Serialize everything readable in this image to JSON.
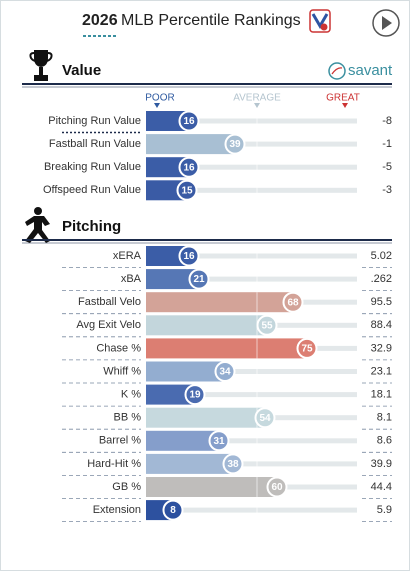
{
  "header": {
    "year": "2026",
    "title": "MLB Percentile Rankings"
  },
  "brand": "savant",
  "scale": {
    "poor": "POOR",
    "average": "AVERAGE",
    "great": "GREAT"
  },
  "sections": [
    {
      "title": "Value",
      "rows": [
        {
          "label": "Pitching Run Value",
          "percentile": 16,
          "value": "-8",
          "color": "#3b5da7"
        },
        {
          "label": "Fastball Run Value",
          "percentile": 39,
          "value": "-1",
          "color": "#a8bfd3"
        },
        {
          "label": "Breaking Run Value",
          "percentile": 16,
          "value": "-5",
          "color": "#3b5da7"
        },
        {
          "label": "Offspeed Run Value",
          "percentile": 15,
          "value": "-3",
          "color": "#3a5ba5"
        }
      ]
    },
    {
      "title": "Pitching",
      "rows": [
        {
          "label": "xERA",
          "percentile": 16,
          "value": "5.02",
          "color": "#3b5da7"
        },
        {
          "label": "xBA",
          "percentile": 21,
          "value": ".262",
          "color": "#5677b5"
        },
        {
          "label": "Fastball Velo",
          "percentile": 68,
          "value": "95.5",
          "color": "#d3a398"
        },
        {
          "label": "Avg Exit Velo",
          "percentile": 55,
          "value": "88.4",
          "color": "#c3d6dc"
        },
        {
          "label": "Chase %",
          "percentile": 75,
          "value": "32.9",
          "color": "#dc7e72"
        },
        {
          "label": "Whiff %",
          "percentile": 34,
          "value": "23.1",
          "color": "#93add0"
        },
        {
          "label": "K %",
          "percentile": 19,
          "value": "18.1",
          "color": "#4a6bb0"
        },
        {
          "label": "BB %",
          "percentile": 54,
          "value": "8.1",
          "color": "#c6d9de"
        },
        {
          "label": "Barrel %",
          "percentile": 31,
          "value": "8.6",
          "color": "#859ecb"
        },
        {
          "label": "Hard-Hit %",
          "percentile": 38,
          "value": "39.9",
          "color": "#a2b8d5"
        },
        {
          "label": "GB %",
          "percentile": 60,
          "value": "44.4",
          "color": "#bfbdbb"
        },
        {
          "label": "Extension",
          "percentile": 8,
          "value": "5.9",
          "color": "#2d519f"
        }
      ]
    }
  ]
}
